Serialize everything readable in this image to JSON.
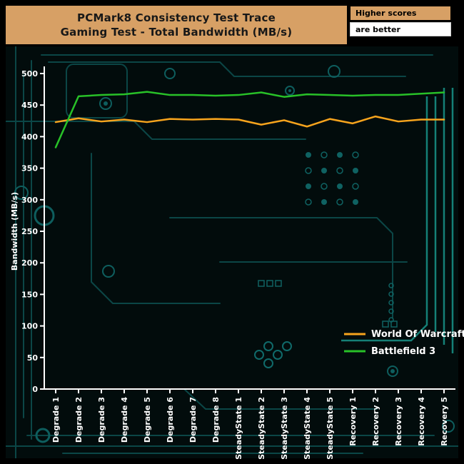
{
  "header": {
    "title_line1": "PCMark8 Consistency Test Trace",
    "title_line2": "Gaming Test - Total Bandwidth (MB/s)",
    "note_top": "Higher scores",
    "note_bottom": "are better"
  },
  "colors": {
    "header_bg": "#d7a065",
    "note_top_bg": "#d7a065",
    "note_bottom_bg": "#ffffff",
    "board_bg": "#020c0c",
    "axis": "#ffffff",
    "wow_line": "#f7a41d",
    "bf3_line": "#28c128",
    "circuit_trace": "#0c4a4a"
  },
  "chart_data": {
    "type": "line",
    "title": "PCMark8 Consistency Test Trace — Gaming Test - Total Bandwidth (MB/s)",
    "xlabel": "",
    "ylabel": "Bandwidth (MB/s)",
    "ylim": [
      0,
      500
    ],
    "ytick_step": 50,
    "grid": false,
    "legend_position": "bottom-right",
    "categories": [
      "Degrade 1",
      "Degrade 2",
      "Degrade 3",
      "Degrade 4",
      "Degrade 5",
      "Degrade 6",
      "Degrade 7",
      "Degrade 8",
      "SteadyState 1",
      "SteadyState 2",
      "SteadyState 3",
      "SteadyState 4",
      "SteadyState 5",
      "Recovery 1",
      "Recovery 2",
      "Recovery 3",
      "Recovery 4",
      "Recovery 5"
    ],
    "series": [
      {
        "name": "World Of Warcraft",
        "color": "#f7a41d",
        "values": [
          423,
          429,
          424,
          427,
          423,
          428,
          427,
          428,
          427,
          419,
          426,
          416,
          428,
          421,
          432,
          424,
          427,
          427
        ]
      },
      {
        "name": "Battlefield 3",
        "color": "#28c128",
        "values": [
          383,
          464,
          466,
          467,
          471,
          466,
          466,
          465,
          466,
          470,
          463,
          467,
          466,
          465,
          466,
          466,
          468,
          470
        ]
      }
    ]
  }
}
